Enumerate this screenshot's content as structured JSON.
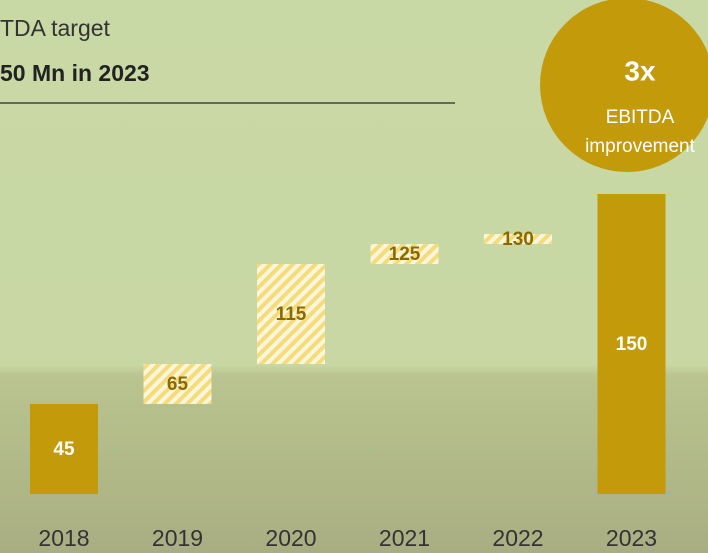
{
  "chart_data": {
    "type": "waterfall",
    "title": "TDA target",
    "subtitle": "50 Mn in 2023",
    "annotations": [
      "3x",
      "EBITDA",
      "improvement"
    ],
    "categories": [
      "2018",
      "2019",
      "2020",
      "2021",
      "2022",
      "2023"
    ],
    "values": [
      45,
      65,
      115,
      125,
      130,
      150
    ],
    "total_color": "#c29a0a",
    "step_color": "#f5dc7a"
  }
}
